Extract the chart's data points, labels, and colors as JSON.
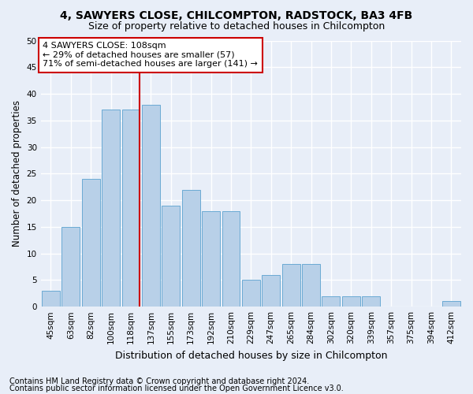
{
  "title1": "4, SAWYERS CLOSE, CHILCOMPTON, RADSTOCK, BA3 4FB",
  "title2": "Size of property relative to detached houses in Chilcompton",
  "xlabel": "Distribution of detached houses by size in Chilcompton",
  "ylabel": "Number of detached properties",
  "categories": [
    "45sqm",
    "63sqm",
    "82sqm",
    "100sqm",
    "118sqm",
    "137sqm",
    "155sqm",
    "173sqm",
    "192sqm",
    "210sqm",
    "229sqm",
    "247sqm",
    "265sqm",
    "284sqm",
    "302sqm",
    "320sqm",
    "339sqm",
    "357sqm",
    "375sqm",
    "394sqm",
    "412sqm"
  ],
  "values": [
    3,
    15,
    24,
    37,
    37,
    38,
    19,
    22,
    18,
    18,
    5,
    6,
    8,
    8,
    2,
    2,
    2,
    0,
    0,
    0,
    1
  ],
  "bar_color": "#b8d0e8",
  "bar_edge_color": "#6aaad4",
  "red_line_index": 4,
  "annotation_line1": "4 SAWYERS CLOSE: 108sqm",
  "annotation_line2": "← 29% of detached houses are smaller (57)",
  "annotation_line3": "71% of semi-detached houses are larger (141) →",
  "annotation_box_color": "#ffffff",
  "annotation_box_edge": "#cc0000",
  "footnote1": "Contains HM Land Registry data © Crown copyright and database right 2024.",
  "footnote2": "Contains public sector information licensed under the Open Government Licence v3.0.",
  "ylim": [
    0,
    50
  ],
  "yticks": [
    0,
    5,
    10,
    15,
    20,
    25,
    30,
    35,
    40,
    45,
    50
  ],
  "bg_color": "#e8eef8",
  "grid_color": "#ffffff",
  "title1_fontsize": 10,
  "title2_fontsize": 9,
  "xlabel_fontsize": 9,
  "ylabel_fontsize": 8.5,
  "tick_fontsize": 7.5,
  "annot_fontsize": 8,
  "footnote_fontsize": 7
}
